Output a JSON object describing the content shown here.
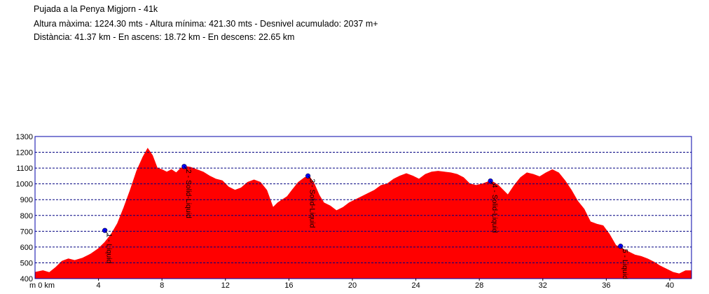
{
  "header": {
    "title": "Pujada a la Penya Migjorn - 41k",
    "line2": "Altura màxima: 1224.30 mts - Altura mínima: 421.30 mts - Desnivel acumulado: 2037 m+",
    "line3": "Distància: 41.37 km - En ascens: 18.72 km - En descens: 22.65 km"
  },
  "colors": {
    "fill": "#ff0000",
    "frame": "#0000aa",
    "grid": "#000080",
    "marker": "#0000ff"
  },
  "chart_data": {
    "type": "area",
    "x_unit_label": "m 0 km",
    "xlim": [
      0,
      41.37
    ],
    "ylim": [
      400,
      1300
    ],
    "x_ticks": [
      4,
      8,
      12,
      16,
      20,
      24,
      28,
      32,
      36,
      40
    ],
    "y_ticks": [
      400,
      500,
      600,
      700,
      800,
      900,
      1000,
      1100,
      1200,
      1300
    ],
    "grid": true,
    "x": [
      0,
      0.5,
      0.9,
      1.3,
      1.7,
      2.1,
      2.5,
      3.0,
      3.5,
      4.0,
      4.4,
      4.8,
      5.2,
      5.6,
      6.0,
      6.4,
      6.8,
      7.1,
      7.4,
      7.7,
      8.0,
      8.3,
      8.6,
      8.9,
      9.2,
      9.5,
      9.8,
      10.2,
      10.6,
      11.0,
      11.4,
      11.8,
      12.2,
      12.6,
      13.0,
      13.4,
      13.8,
      14.2,
      14.6,
      15.0,
      15.3,
      15.6,
      15.9,
      16.2,
      16.6,
      17.0,
      17.3,
      17.6,
      17.9,
      18.2,
      18.6,
      19.0,
      19.4,
      19.8,
      20.2,
      20.6,
      21.0,
      21.4,
      21.8,
      22.2,
      22.6,
      23.0,
      23.4,
      23.8,
      24.2,
      24.6,
      25.0,
      25.4,
      25.8,
      26.2,
      26.6,
      27.0,
      27.4,
      27.8,
      28.2,
      28.6,
      28.9,
      29.2,
      29.5,
      29.8,
      30.2,
      30.6,
      31.0,
      31.4,
      31.8,
      32.2,
      32.6,
      33.0,
      33.4,
      33.8,
      34.2,
      34.6,
      35.0,
      35.4,
      35.8,
      36.2,
      36.6,
      37.0,
      37.4,
      37.8,
      38.2,
      38.6,
      39.0,
      39.4,
      39.8,
      40.2,
      40.6,
      41.0,
      41.37
    ],
    "values": [
      440,
      450,
      438,
      470,
      510,
      525,
      515,
      530,
      555,
      590,
      630,
      680,
      750,
      850,
      960,
      1080,
      1170,
      1224,
      1180,
      1100,
      1090,
      1075,
      1090,
      1070,
      1100,
      1110,
      1105,
      1090,
      1075,
      1050,
      1030,
      1020,
      980,
      960,
      975,
      1010,
      1025,
      1010,
      960,
      850,
      880,
      900,
      920,
      960,
      1010,
      1040,
      1045,
      1000,
      930,
      880,
      860,
      830,
      850,
      880,
      900,
      920,
      940,
      960,
      990,
      1000,
      1030,
      1050,
      1065,
      1050,
      1030,
      1060,
      1075,
      1080,
      1075,
      1070,
      1060,
      1040,
      1000,
      990,
      1000,
      1015,
      1010,
      990,
      960,
      930,
      990,
      1040,
      1070,
      1060,
      1045,
      1070,
      1090,
      1070,
      1020,
      960,
      890,
      840,
      760,
      745,
      735,
      680,
      610,
      590,
      570,
      550,
      540,
      525,
      505,
      480,
      460,
      440,
      430,
      450,
      450
    ],
    "markers": [
      {
        "x": 4.4,
        "y": 705,
        "label": "1 - Liquid"
      },
      {
        "x": 9.4,
        "y": 1110,
        "label": "2 - Solid-Liquid"
      },
      {
        "x": 17.2,
        "y": 1050,
        "label": "3 - Solid-Liquid"
      },
      {
        "x": 28.7,
        "y": 1018,
        "label": "4 - Solid-Liquid"
      },
      {
        "x": 36.9,
        "y": 605,
        "label": "5 - Liquid"
      }
    ]
  }
}
